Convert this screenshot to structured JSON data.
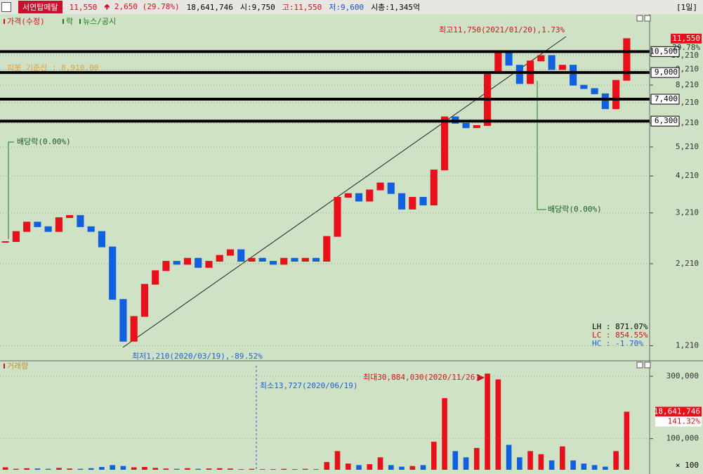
{
  "header": {
    "name": "서연탑메탈",
    "price": "11,550",
    "change": "2,650",
    "change_pct": "(29.78%)",
    "volume": "18,641,746",
    "open": "시:9,750",
    "high": "고:11,550",
    "low": "저:9,600",
    "market_cap": "시총:1,345억",
    "period": "[1일]"
  },
  "chart_data": [
    {
      "type": "candlestick",
      "legend_items": [
        "가격(수정)",
        "락",
        "뉴스/공시"
      ],
      "log_scale": true,
      "values": [
        2600,
        2800,
        3000,
        2900,
        2800,
        3100,
        3150,
        2900,
        2800,
        2500,
        1700,
        1250,
        1500,
        1900,
        2100,
        2250,
        2200,
        2300,
        2150,
        2250,
        2350,
        2450,
        2250,
        2300,
        2250,
        2200,
        2300,
        2250,
        2300,
        2250,
        2700,
        3600,
        3700,
        3500,
        3800,
        4000,
        3700,
        3300,
        3600,
        3400,
        4400,
        6500,
        6200,
        6000,
        6100,
        9000,
        10500,
        9500,
        8300,
        9800,
        10200,
        9200,
        9500,
        8200,
        8000,
        7700,
        6900,
        8500,
        11550
      ],
      "up_color": "#e8101a",
      "down_color": "#1060e0",
      "ylim": [
        1100,
        12800
      ],
      "yticks": [
        {
          "value": 1210,
          "label": "1,210"
        },
        {
          "value": 2210,
          "label": "2,210"
        },
        {
          "value": 3210,
          "label": "3,210"
        },
        {
          "value": 4210,
          "label": "4,210"
        },
        {
          "value": 5210,
          "label": "5,210"
        },
        {
          "value": 6210,
          "label": "6,210"
        },
        {
          "value": 7210,
          "label": "7,210"
        },
        {
          "value": 8210,
          "label": "8,210"
        },
        {
          "value": 9210,
          "label": "9,210"
        },
        {
          "value": 10210,
          "label": "10,210"
        }
      ],
      "grid": true,
      "levels": [
        {
          "value": 10500,
          "label": "10,500"
        },
        {
          "value": 9000,
          "label": "9,000"
        },
        {
          "value": 7400,
          "label": "7,400"
        },
        {
          "value": 6300,
          "label": "6,300"
        }
      ],
      "last_price": {
        "value": 11550,
        "label": "11,550"
      },
      "last_change": "29.78%",
      "pivot": "피봇 기준선 : 8,910.00",
      "dividend_1": "배당락(0.00%)",
      "dividend_2": "배당락(0.00%)",
      "high_note": "최고11,750(2021/01/20),1.73%",
      "low_note": "최저1,210(2020/03/19),-89.52%",
      "stats": [
        "LH : 871.07%",
        "LC : 854.55%",
        "HC : -1.70%"
      ]
    },
    {
      "type": "bar",
      "title": "거래량",
      "values": [
        8000,
        3000,
        5000,
        4000,
        3000,
        6000,
        4000,
        3000,
        5000,
        9000,
        15000,
        12000,
        8000,
        9000,
        6000,
        4000,
        3000,
        5000,
        3000,
        4000,
        5000,
        4000,
        2000,
        3000,
        2000,
        2000,
        3000,
        2000,
        3000,
        2000,
        25000,
        60000,
        20000,
        15000,
        18000,
        40000,
        15000,
        10000,
        12000,
        15000,
        90000,
        230000,
        60000,
        40000,
        70000,
        308840,
        290000,
        80000,
        40000,
        60000,
        50000,
        30000,
        75000,
        30000,
        20000,
        15000,
        10000,
        60000,
        186417
      ],
      "ylim": [
        0,
        334000
      ],
      "yticks": [
        {
          "value": 300000,
          "label": "300,000"
        },
        {
          "value": 100000,
          "label": "100,000"
        }
      ],
      "unit": "× 100",
      "grid": true,
      "min_note": "최소13,727(2020/06/19)",
      "max_note": "최대30,884,030(2020/11/26)",
      "last_label": "18,641,746",
      "last_change": "141.32%"
    }
  ]
}
